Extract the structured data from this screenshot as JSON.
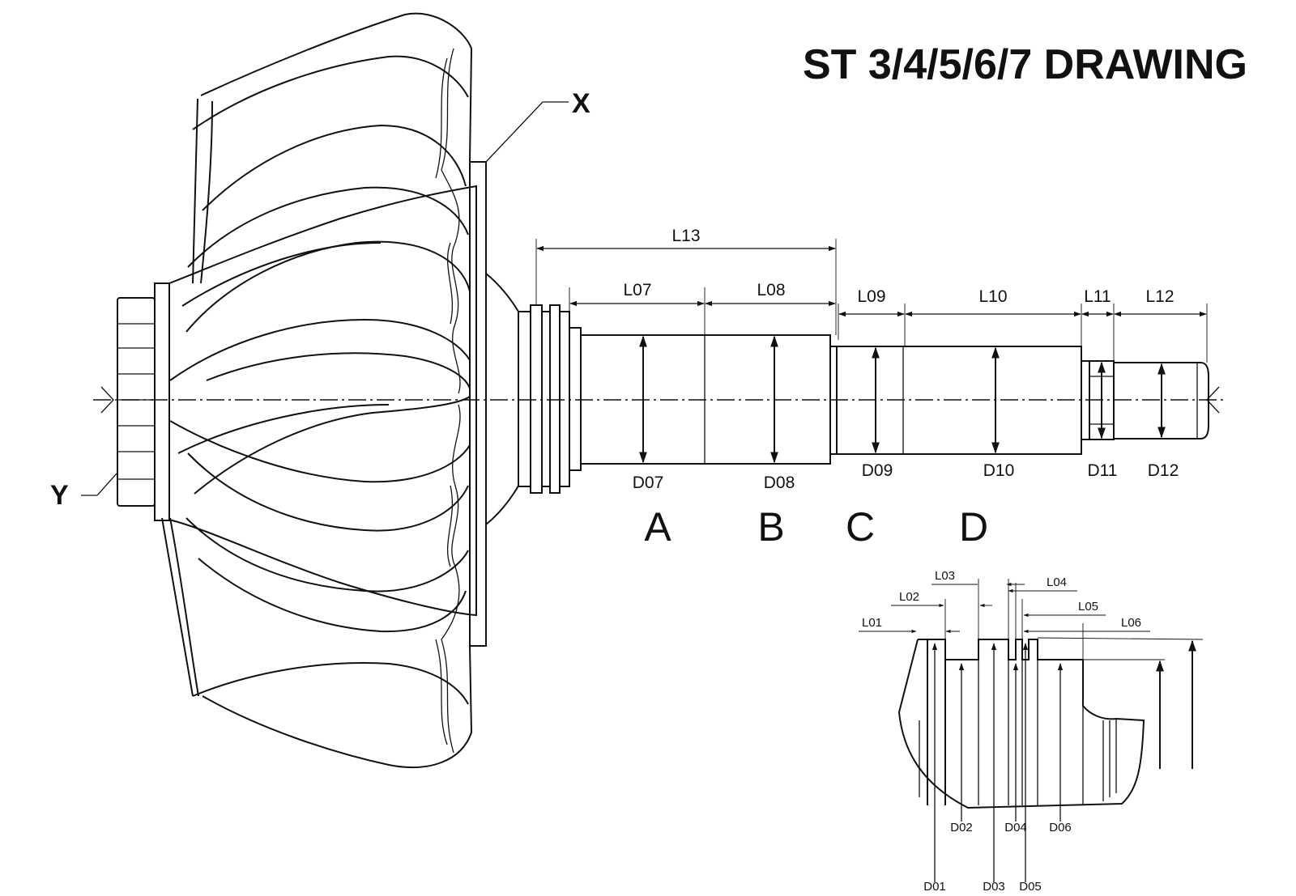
{
  "title": "ST 3/4/5/6/7 DRAWING",
  "callouts": {
    "x": "X",
    "y": "Y"
  },
  "main_view": {
    "lengths": [
      "L07",
      "L08",
      "L09",
      "L10",
      "L11",
      "L12",
      "L13"
    ],
    "diameters": [
      "D07",
      "D08",
      "D09",
      "D10",
      "D11",
      "D12"
    ],
    "sections": [
      "A",
      "B",
      "C",
      "D"
    ]
  },
  "detail_view": {
    "lengths": [
      "L01",
      "L02",
      "L03",
      "L04",
      "L05",
      "L06"
    ],
    "diameters": [
      "D01",
      "D02",
      "D03",
      "D04",
      "D05",
      "D06"
    ]
  }
}
